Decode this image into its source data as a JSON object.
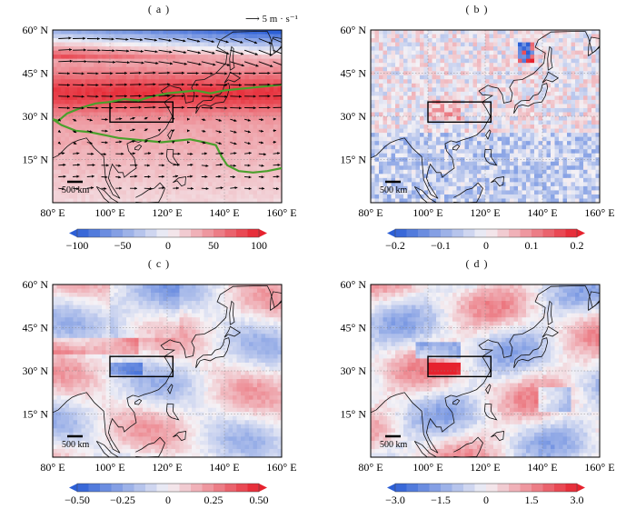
{
  "scale_bar_label": "500 km",
  "wind_reference": {
    "label": "5 m · s⁻¹"
  },
  "map": {
    "lon_ticks": [
      "80° E",
      "100° E",
      "120° E",
      "140° E",
      "160° E"
    ],
    "lat_ticks": [
      "60° N",
      "45° N",
      "30° N",
      "15° N"
    ]
  },
  "panels": [
    {
      "label": "( a )",
      "colorbar_ticks": [
        "−100",
        "−50",
        "0",
        "50",
        "100"
      ]
    },
    {
      "label": "( b )",
      "colorbar_ticks": [
        "−0.2",
        "−0.1",
        "0",
        "0.1",
        "0.2"
      ]
    },
    {
      "label": "( c )",
      "colorbar_ticks": [
        "−0.50",
        "−0.25",
        "0",
        "0.25",
        "0.50"
      ]
    },
    {
      "label": "( d )",
      "colorbar_ticks": [
        "−3.0",
        "−1.5",
        "0",
        "1.5",
        "3.0"
      ]
    }
  ],
  "colors": {
    "strong_negative": "#2c5fd6",
    "neutral": "#f4f2f6",
    "strong_positive": "#e6222e",
    "contour": "#4aa02c"
  }
}
